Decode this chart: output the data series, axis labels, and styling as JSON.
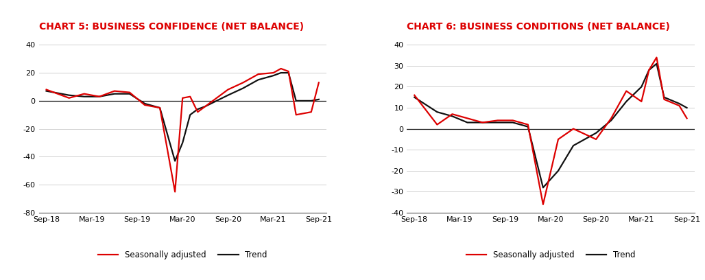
{
  "chart5_title": "CHART 5: BUSINESS CONFIDENCE (NET BALANCE)",
  "chart6_title": "CHART 6: BUSINESS CONDITIONS (NET BALANCE)",
  "x_labels": [
    "Sep-18",
    "Mar-19",
    "Sep-19",
    "Mar-20",
    "Sep-20",
    "Mar-21",
    "Sep-21"
  ],
  "legend_sa": "Seasonally adjusted",
  "legend_trend": "Trend",
  "chart5_sa_x": [
    0,
    3,
    5,
    7,
    9,
    11,
    13,
    15,
    17,
    18,
    19,
    20,
    21,
    24,
    26,
    28,
    30,
    31,
    32,
    33,
    35,
    36
  ],
  "chart5_sa_y": [
    8,
    2,
    5,
    3,
    7,
    6,
    -3,
    -5,
    -65,
    2,
    3,
    -8,
    -4,
    8,
    13,
    19,
    20,
    23,
    21,
    -10,
    -8,
    13
  ],
  "chart5_tr_x": [
    0,
    3,
    5,
    7,
    9,
    11,
    13,
    15,
    17,
    18,
    19,
    20,
    21,
    24,
    26,
    28,
    30,
    31,
    32,
    33,
    35,
    36
  ],
  "chart5_tr_y": [
    7,
    4,
    3,
    3,
    5,
    5,
    -2,
    -5,
    -43,
    -30,
    -10,
    -6,
    -4,
    4,
    9,
    15,
    18,
    20,
    20,
    0,
    0,
    1
  ],
  "chart6_sa_x": [
    0,
    3,
    5,
    7,
    9,
    11,
    13,
    15,
    17,
    19,
    21,
    24,
    26,
    28,
    30,
    31,
    32,
    33,
    35,
    36
  ],
  "chart6_sa_y": [
    16,
    2,
    7,
    5,
    3,
    4,
    4,
    2,
    -36,
    -5,
    0,
    -5,
    5,
    18,
    13,
    28,
    34,
    14,
    11,
    5
  ],
  "chart6_tr_x": [
    0,
    3,
    5,
    7,
    9,
    11,
    13,
    15,
    17,
    19,
    21,
    24,
    26,
    28,
    30,
    31,
    32,
    33,
    35,
    36
  ],
  "chart6_tr_y": [
    15,
    8,
    6,
    3,
    3,
    3,
    3,
    1,
    -28,
    -20,
    -8,
    -2,
    4,
    13,
    20,
    28,
    31,
    15,
    12,
    10
  ],
  "chart5_ylim": [
    -80,
    40
  ],
  "chart5_yticks": [
    -80,
    -60,
    -40,
    -20,
    0,
    20,
    40
  ],
  "chart6_ylim": [
    -40,
    40
  ],
  "chart6_yticks": [
    -40,
    -30,
    -20,
    -10,
    0,
    10,
    20,
    30,
    40
  ],
  "x_tick_positions": [
    0,
    6,
    12,
    18,
    24,
    30,
    36
  ],
  "xlim": [
    -1,
    37
  ],
  "sa_color": "#dd0000",
  "trend_color": "#111111",
  "title_color": "#dd0000",
  "bg_color": "#ffffff",
  "grid_color": "#c8c8c8",
  "line_width": 1.6,
  "title_fontsize": 10,
  "tick_fontsize": 8,
  "legend_fontsize": 8.5
}
